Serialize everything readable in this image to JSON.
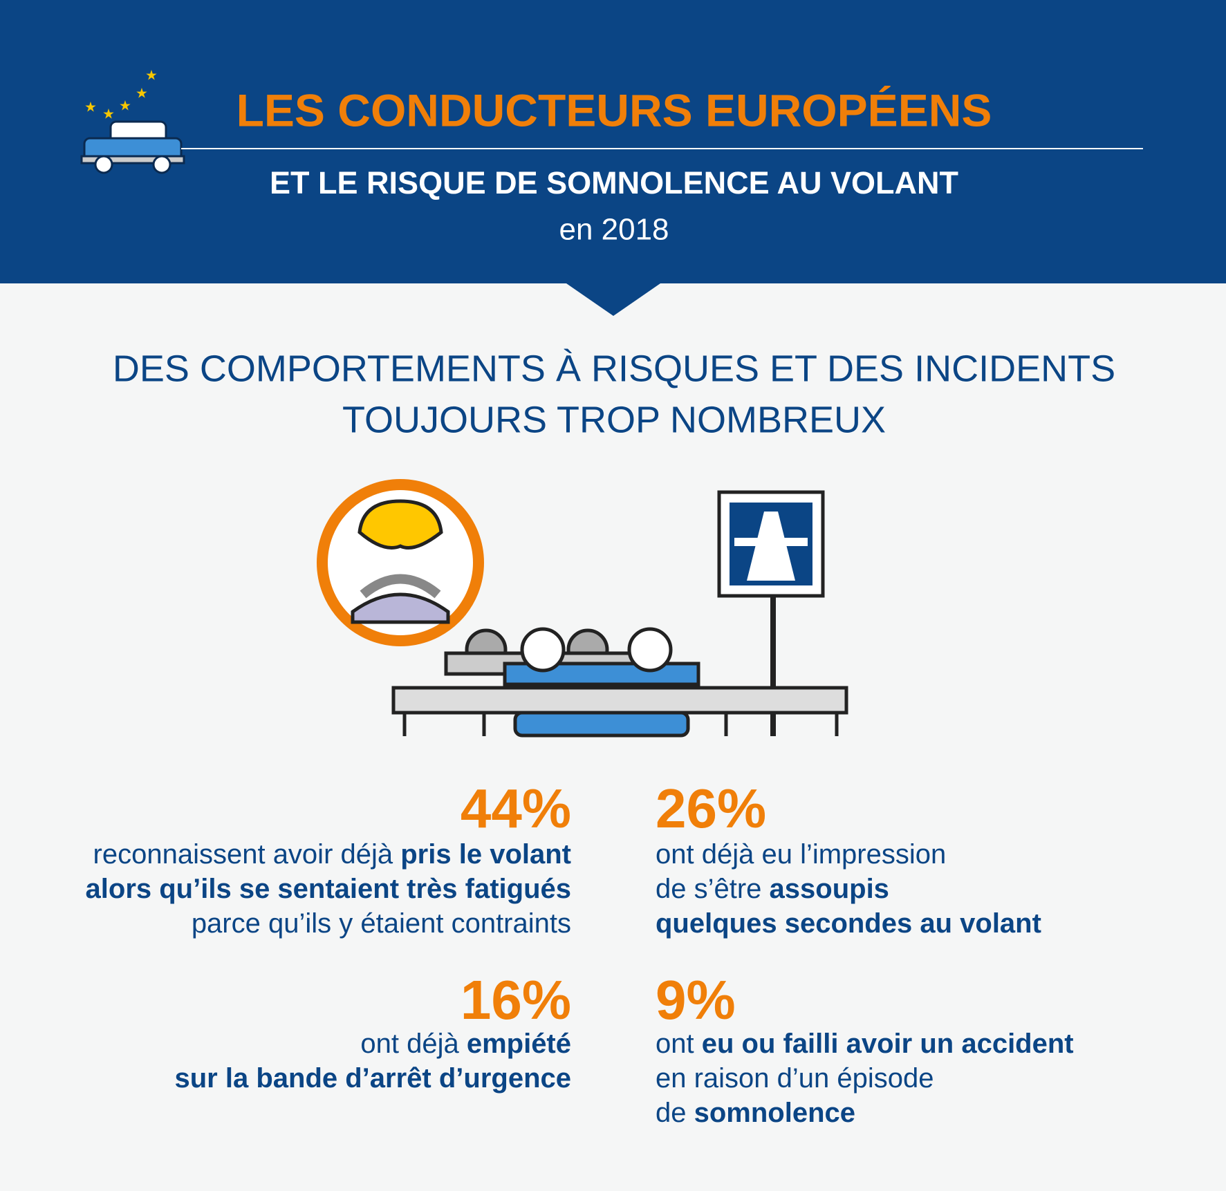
{
  "header": {
    "title": "LES CONDUCTEURS EUROPÉENS",
    "subtitle": "ET LE RISQUE DE SOMNOLENCE AU VOLANT",
    "year": "en 2018"
  },
  "section": {
    "heading_lines": [
      "DES COMPORTEMENTS À RISQUES ET DES INCIDENTS",
      "TOUJOURS TROP NOMBREUX"
    ]
  },
  "stats": [
    {
      "value": "44%",
      "lines": [
        [
          {
            "text": "reconnaissent avoir déjà ",
            "bold": false
          },
          {
            "text": "pris le volant",
            "bold": true
          }
        ],
        [
          {
            "text": "alors qu’ils se sentaient très fatigués",
            "bold": true
          }
        ],
        [
          {
            "text": "parce qu’ils y étaient contraints",
            "bold": false
          }
        ]
      ]
    },
    {
      "value": "26%",
      "lines": [
        [
          {
            "text": "ont déjà eu l’impression",
            "bold": false
          }
        ],
        [
          {
            "text": "de s’être ",
            "bold": false
          },
          {
            "text": "assoupis",
            "bold": true
          }
        ],
        [
          {
            "text": "quelques secondes au volant",
            "bold": true
          }
        ]
      ]
    },
    {
      "value": "16%",
      "lines": [
        [
          {
            "text": "ont déjà ",
            "bold": false
          },
          {
            "text": "empiété",
            "bold": true
          }
        ],
        [
          {
            "text": "sur la bande d’arrêt d’urgence",
            "bold": true
          }
        ]
      ]
    },
    {
      "value": "9%",
      "lines": [
        [
          {
            "text": "ont ",
            "bold": false
          },
          {
            "text": "eu ou failli avoir un accident",
            "bold": true
          }
        ],
        [
          {
            "text": "en raison d’un épisode",
            "bold": false
          }
        ],
        [
          {
            "text": "de ",
            "bold": false
          },
          {
            "text": "somnolence",
            "bold": true
          }
        ]
      ]
    }
  ]
}
